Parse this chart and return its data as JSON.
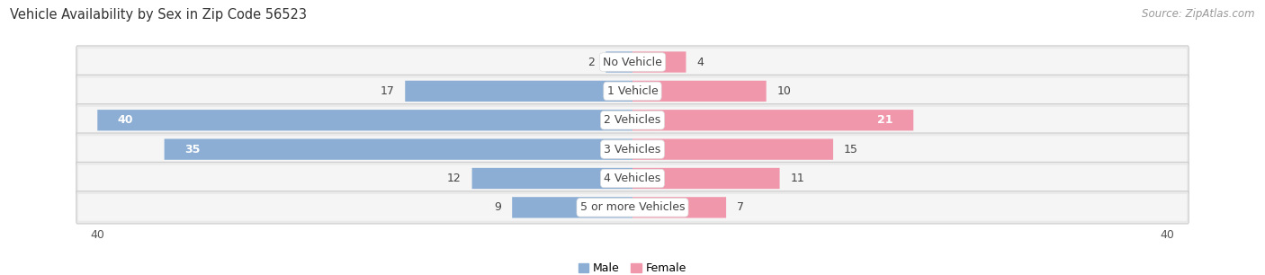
{
  "title": "Vehicle Availability by Sex in Zip Code 56523",
  "source": "Source: ZipAtlas.com",
  "categories": [
    "No Vehicle",
    "1 Vehicle",
    "2 Vehicles",
    "3 Vehicles",
    "4 Vehicles",
    "5 or more Vehicles"
  ],
  "male_values": [
    2,
    17,
    40,
    35,
    12,
    9
  ],
  "female_values": [
    4,
    10,
    21,
    15,
    11,
    7
  ],
  "male_color": "#8CAED4",
  "female_color": "#F097AC",
  "male_color_bright": "#6B9DC8",
  "female_color_bright": "#E8637E",
  "row_bg_color": "#EAEAEA",
  "row_bg_inner": "#F5F5F5",
  "max_value": 40,
  "legend_male": "Male",
  "legend_female": "Female",
  "bar_height": 0.72,
  "label_fontsize": 9.0,
  "title_fontsize": 10.5,
  "source_fontsize": 8.5,
  "axis_label_fontsize": 9.0
}
